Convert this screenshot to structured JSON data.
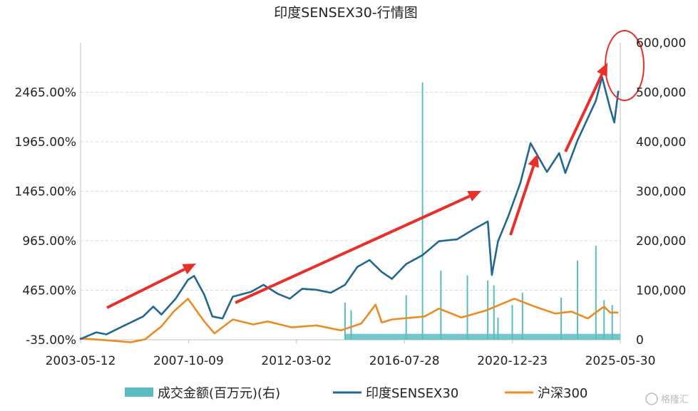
{
  "chart_data": {
    "type": "line",
    "title": "印度SENSEX30-行情图",
    "x_ticks": [
      "2003-05-12",
      "2007-10-09",
      "2012-03-02",
      "2016-07-28",
      "2020-12-23",
      "2025-05-30"
    ],
    "y_left_ticks": [
      "-35.00%",
      "465.00%",
      "965.00%",
      "1465.00%",
      "1965.00%",
      "2465.00%"
    ],
    "y_left_range": [
      -35,
      2965
    ],
    "y_right_ticks": [
      "0",
      "100,000",
      "200,000",
      "300,000",
      "400,000",
      "500,000",
      "600,000"
    ],
    "y_right_range": [
      0,
      600000
    ],
    "grid": "horizontal dashed",
    "legend_position": "bottom",
    "series": [
      {
        "name": "成交金额(百万元)(右)",
        "kind": "bar",
        "axis": "right",
        "color": "#5bbcc0",
        "x": [
          "2014-03",
          "2014-06",
          "2016-09",
          "2017-05",
          "2018-02",
          "2019-03",
          "2020-01",
          "2020-04",
          "2020-06",
          "2021-01",
          "2021-06",
          "2023-01",
          "2023-09",
          "2024-06",
          "2024-10",
          "2025-02"
        ],
        "values": [
          75000,
          60000,
          90000,
          520000,
          140000,
          130000,
          120000,
          110000,
          45000,
          70000,
          95000,
          85000,
          160000,
          190000,
          80000,
          70000
        ],
        "baseline_level": 12000
      },
      {
        "name": "印度SENSEX30",
        "kind": "line",
        "axis": "left",
        "color": "#22678f",
        "x": [
          "2003-05",
          "2004-01",
          "2004-06",
          "2005-01",
          "2005-12",
          "2006-05",
          "2006-09",
          "2007-04",
          "2007-10",
          "2008-01",
          "2008-06",
          "2008-10",
          "2009-03",
          "2009-08",
          "2010-05",
          "2010-11",
          "2011-06",
          "2011-12",
          "2012-06",
          "2013-01",
          "2013-08",
          "2014-03",
          "2014-09",
          "2015-03",
          "2015-09",
          "2016-02",
          "2016-09",
          "2017-05",
          "2018-01",
          "2018-10",
          "2019-06",
          "2020-01",
          "2020-03",
          "2020-06",
          "2020-11",
          "2021-05",
          "2021-10",
          "2022-06",
          "2022-12",
          "2023-03",
          "2023-09",
          "2024-06",
          "2024-09",
          "2025-01",
          "2025-03",
          "2025-05"
        ],
        "values": [
          -30,
          40,
          20,
          90,
          200,
          300,
          220,
          380,
          570,
          610,
          420,
          200,
          180,
          400,
          450,
          520,
          430,
          380,
          480,
          470,
          440,
          520,
          700,
          770,
          650,
          580,
          730,
          820,
          960,
          980,
          1080,
          1160,
          620,
          960,
          1210,
          1550,
          1950,
          1660,
          1850,
          1650,
          1980,
          2380,
          2620,
          2300,
          2160,
          2480
        ]
      },
      {
        "name": "沪深300",
        "kind": "line",
        "axis": "left",
        "color": "#ec8b22",
        "x": [
          "2003-05",
          "2004-06",
          "2005-06",
          "2006-01",
          "2006-09",
          "2007-03",
          "2007-10",
          "2008-06",
          "2008-11",
          "2009-08",
          "2010-06",
          "2011-01",
          "2012-01",
          "2013-01",
          "2014-01",
          "2014-11",
          "2015-06",
          "2015-09",
          "2016-02",
          "2017-06",
          "2018-01",
          "2018-12",
          "2019-12",
          "2021-02",
          "2021-12",
          "2022-10",
          "2023-06",
          "2024-02",
          "2024-10",
          "2025-01",
          "2025-05"
        ],
        "values": [
          -20,
          -40,
          -60,
          -30,
          100,
          250,
          380,
          150,
          30,
          170,
          120,
          150,
          90,
          110,
          60,
          130,
          320,
          140,
          170,
          200,
          280,
          190,
          260,
          380,
          300,
          230,
          250,
          180,
          300,
          240,
          240
        ]
      }
    ]
  },
  "legend": [
    {
      "label": "成交金额(百万元)(右)",
      "color": "#5bbcc0",
      "shape": "box"
    },
    {
      "label": "印度SENSEX30",
      "color": "#22678f",
      "shape": "line"
    },
    {
      "label": "沪深300",
      "color": "#ec8b22",
      "shape": "line"
    }
  ],
  "watermark": "格隆汇",
  "annotation_color": "#e8302a"
}
